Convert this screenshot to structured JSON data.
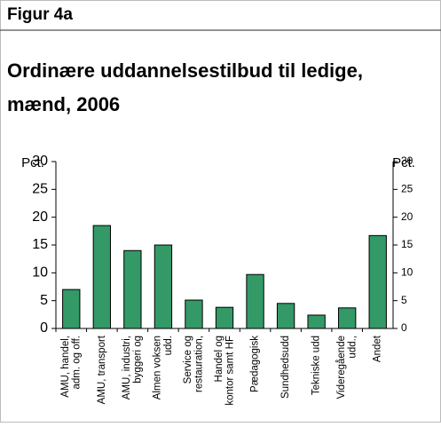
{
  "header": "Figur 4a",
  "chart_data": {
    "type": "bar",
    "title": [
      "Ordinære uddannelsestilbud til ledige,",
      "mænd, 2006"
    ],
    "ylabel": "Pct.",
    "y2label": "Pct.",
    "categories": [
      "AMU, handel,\nadm. og off.",
      "AMU, transport",
      "AMU, industri,\nbyggeri og",
      "Almen voksen\nudd.",
      "Service og\nrestauration,",
      "Handel og\nkontor samt HF",
      "Pædagogisk",
      "Sundhedsudd",
      "Tekniske udd",
      "Videregående\nudd.,",
      "Andet"
    ],
    "values": [
      7.0,
      18.5,
      14.0,
      15.0,
      5.1,
      3.8,
      9.7,
      4.5,
      2.4,
      3.7,
      16.7
    ],
    "color": "#339966",
    "ylim": [
      0,
      30
    ],
    "yticks": [
      0,
      5,
      10,
      15,
      20,
      25,
      30
    ],
    "y2lim": [
      0,
      30
    ],
    "y2ticks": [
      0,
      5,
      10,
      15,
      20,
      25,
      30
    ]
  }
}
